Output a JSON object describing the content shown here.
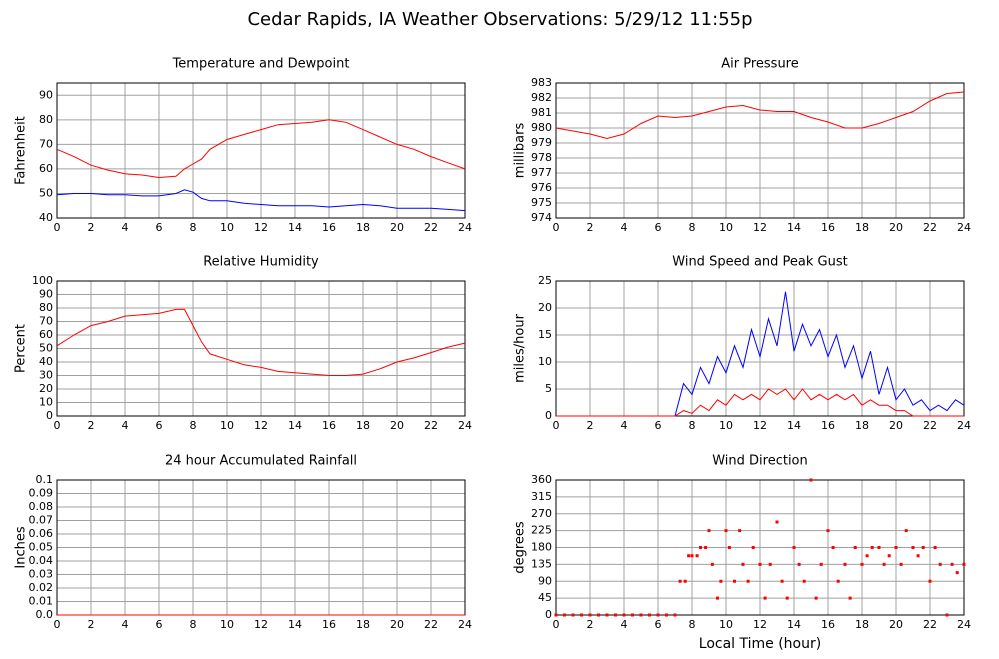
{
  "title": "Cedar Rapids, IA Weather Observations: 5/29/12 11:55p",
  "chart_data": [
    {
      "type": "line",
      "title": "Temperature and Dewpoint",
      "ylabel": "Fahrenheit",
      "x": [
        0,
        1,
        2,
        3,
        4,
        5,
        6,
        7,
        7.5,
        8,
        8.5,
        9,
        10,
        11,
        12,
        13,
        14,
        15,
        16,
        17,
        18,
        19,
        20,
        21,
        22,
        23,
        24
      ],
      "series": [
        {
          "name": "Temperature",
          "color": "#ff0000",
          "values": [
            68,
            65,
            61.5,
            59.5,
            58,
            57.5,
            56.5,
            57,
            60,
            62,
            64,
            68,
            72,
            74,
            76,
            78,
            78.5,
            79,
            80,
            79,
            76,
            73,
            70,
            68,
            65,
            62.5,
            60
          ]
        },
        {
          "name": "Dewpoint",
          "color": "#0000ff",
          "values": [
            49.5,
            50,
            50,
            49.5,
            49.5,
            49,
            49,
            50,
            51.5,
            50.5,
            48,
            47,
            47,
            46,
            45.5,
            45,
            45,
            45,
            44.5,
            45,
            45.5,
            45,
            44,
            44,
            44,
            43.5,
            43
          ]
        }
      ],
      "xlim": [
        0,
        24
      ],
      "xticks": [
        0,
        2,
        4,
        6,
        8,
        10,
        12,
        14,
        16,
        18,
        20,
        22,
        24
      ],
      "ylim": [
        40,
        95
      ],
      "yticks": [
        40,
        50,
        60,
        70,
        80,
        90
      ],
      "grid": true
    },
    {
      "type": "line",
      "title": "Air Pressure",
      "ylabel": "millibars",
      "x": [
        0,
        1,
        2,
        3,
        4,
        5,
        6,
        7,
        8,
        9,
        10,
        11,
        12,
        13,
        14,
        15,
        16,
        17,
        18,
        19,
        20,
        21,
        22,
        23,
        24
      ],
      "series": [
        {
          "name": "Pressure",
          "color": "#ff0000",
          "values": [
            980,
            979.8,
            979.6,
            979.3,
            979.6,
            980.3,
            980.8,
            980.7,
            980.8,
            981.1,
            981.4,
            981.5,
            981.2,
            981.1,
            981.1,
            980.7,
            980.4,
            980,
            980,
            980.3,
            980.7,
            981.1,
            981.8,
            982.3,
            982.4
          ]
        }
      ],
      "xlim": [
        0,
        24
      ],
      "xticks": [
        0,
        2,
        4,
        6,
        8,
        10,
        12,
        14,
        16,
        18,
        20,
        22,
        24
      ],
      "ylim": [
        974,
        983
      ],
      "yticks": [
        974,
        975,
        976,
        977,
        978,
        979,
        980,
        981,
        982,
        983
      ],
      "grid": true
    },
    {
      "type": "line",
      "title": "Relative Humidity",
      "ylabel": "Percent",
      "x": [
        0,
        1,
        2,
        3,
        4,
        5,
        6,
        7,
        7.5,
        8,
        8.5,
        9,
        10,
        11,
        12,
        13,
        14,
        15,
        16,
        17,
        18,
        19,
        20,
        21,
        22,
        23,
        24
      ],
      "series": [
        {
          "name": "Relative Humidity",
          "color": "#ff0000",
          "values": [
            52,
            60,
            67,
            70,
            74,
            75,
            76,
            79,
            79,
            67,
            55,
            46,
            42,
            38,
            36,
            33,
            32,
            31,
            30,
            30,
            31,
            35,
            40,
            43,
            47,
            51,
            54
          ]
        }
      ],
      "xlim": [
        0,
        24
      ],
      "xticks": [
        0,
        2,
        4,
        6,
        8,
        10,
        12,
        14,
        16,
        18,
        20,
        22,
        24
      ],
      "ylim": [
        0,
        100
      ],
      "yticks": [
        0,
        10,
        20,
        30,
        40,
        50,
        60,
        70,
        80,
        90,
        100
      ],
      "grid": true
    },
    {
      "type": "line",
      "title": "Wind Speed and Peak Gust",
      "ylabel": "miles/hour",
      "x": [
        0,
        7,
        7.5,
        8,
        8.5,
        9,
        9.5,
        10,
        10.5,
        11,
        11.5,
        12,
        12.5,
        13,
        13.5,
        14,
        14.5,
        15,
        15.5,
        16,
        16.5,
        17,
        17.5,
        18,
        18.5,
        19,
        19.5,
        20,
        20.5,
        21,
        21.5,
        22,
        22.5,
        23,
        23.5,
        24
      ],
      "series": [
        {
          "name": "Peak Gust",
          "color": "#0000ff",
          "values": [
            0,
            0,
            6,
            4,
            9,
            6,
            11,
            8,
            13,
            9,
            16,
            11,
            18,
            13,
            23,
            12,
            17,
            13,
            16,
            11,
            15,
            9,
            13,
            7,
            12,
            4,
            9,
            3,
            5,
            2,
            3,
            1,
            2,
            1,
            3,
            2
          ]
        },
        {
          "name": "Wind Speed",
          "color": "#ff0000",
          "values": [
            0,
            0,
            1,
            0.5,
            2,
            1,
            3,
            2,
            4,
            3,
            4,
            3,
            5,
            4,
            5,
            3,
            5,
            3,
            4,
            3,
            4,
            3,
            4,
            2,
            3,
            2,
            2,
            1,
            1,
            0,
            0,
            0,
            0,
            0,
            0,
            0
          ]
        }
      ],
      "xlim": [
        0,
        24
      ],
      "xticks": [
        0,
        2,
        4,
        6,
        8,
        10,
        12,
        14,
        16,
        18,
        20,
        22,
        24
      ],
      "ylim": [
        0,
        25
      ],
      "yticks": [
        0,
        5,
        10,
        15,
        20,
        25
      ],
      "grid": true
    },
    {
      "type": "line",
      "title": "24 hour Accumulated Rainfall",
      "ylabel": "Inches",
      "x": [
        0,
        24
      ],
      "series": [
        {
          "name": "Rainfall",
          "color": "#ff0000",
          "values": [
            0,
            0
          ]
        }
      ],
      "xlim": [
        0,
        24
      ],
      "xticks": [
        0,
        2,
        4,
        6,
        8,
        10,
        12,
        14,
        16,
        18,
        20,
        22,
        24
      ],
      "ylim": [
        0,
        0.1
      ],
      "yticks": [
        {
          "value": 0,
          "label": "0.0"
        },
        0.01,
        0.02,
        0.03,
        0.04,
        0.05,
        0.06,
        0.07,
        0.08,
        0.09,
        0.1
      ],
      "grid": true
    },
    {
      "type": "scatter",
      "title": "Wind Direction",
      "ylabel": "degrees",
      "xlabel": "Local Time (hour)",
      "x": [
        0,
        0.5,
        1,
        1.5,
        2,
        2.5,
        3,
        3.5,
        4,
        4.5,
        5,
        5.5,
        6,
        6.5,
        7,
        7.3,
        7.6,
        7.8,
        8,
        8.3,
        8.5,
        8.8,
        9,
        9.2,
        9.5,
        9.7,
        10,
        10.2,
        10.5,
        10.8,
        11,
        11.3,
        11.6,
        12,
        12.3,
        12.6,
        13,
        13.3,
        13.6,
        14,
        14.3,
        14.6,
        15,
        15.3,
        15.6,
        16,
        16.3,
        16.6,
        17,
        17.3,
        17.6,
        18,
        18.3,
        18.6,
        19,
        19.3,
        19.6,
        20,
        20.3,
        20.6,
        21,
        21.3,
        21.6,
        22,
        22.3,
        22.6,
        23,
        23.3,
        23.6,
        24
      ],
      "series": [
        {
          "name": "Wind Direction",
          "color": "#ff0000",
          "values": [
            0,
            0,
            0,
            0,
            0,
            0,
            0,
            0,
            0,
            0,
            0,
            0,
            0,
            0,
            0,
            90,
            90,
            158,
            158,
            158,
            180,
            180,
            225,
            135,
            45,
            90,
            225,
            180,
            90,
            225,
            135,
            90,
            180,
            135,
            45,
            135,
            248,
            90,
            45,
            180,
            135,
            90,
            360,
            45,
            135,
            225,
            180,
            90,
            135,
            45,
            180,
            135,
            158,
            180,
            180,
            135,
            158,
            180,
            135,
            225,
            180,
            158,
            180,
            90,
            180,
            135,
            0,
            135,
            113,
            135
          ]
        }
      ],
      "xlim": [
        0,
        24
      ],
      "xticks": [
        0,
        2,
        4,
        6,
        8,
        10,
        12,
        14,
        16,
        18,
        20,
        22,
        24
      ],
      "ylim": [
        0,
        360
      ],
      "yticks": [
        0,
        45,
        90,
        135,
        180,
        225,
        270,
        315,
        360
      ],
      "grid": true
    }
  ]
}
